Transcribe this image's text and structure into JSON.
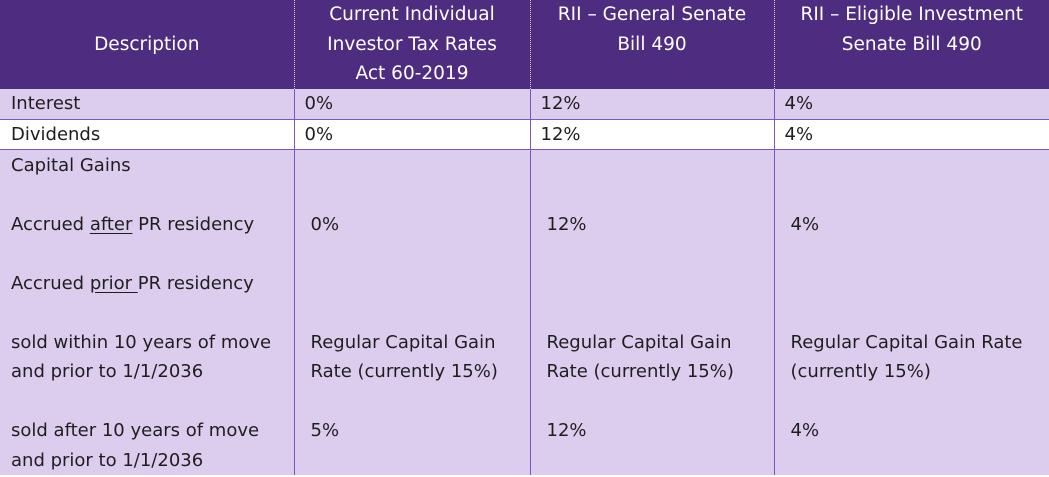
{
  "headers": {
    "description": "Description",
    "col_current": [
      "Current Individual",
      "Investor Tax Rates",
      "Act 60-2019"
    ],
    "col_general": [
      "RII – General Senate",
      "Bill 490"
    ],
    "col_eligible": [
      "RII – Eligible Investment",
      "Senate Bill 490"
    ]
  },
  "rows": {
    "interest": {
      "label": "Interest",
      "current": "0%",
      "general": "12%",
      "eligible": "4%"
    },
    "dividends": {
      "label": "Dividends",
      "current": "0%",
      "general": "12%",
      "eligible": "4%"
    }
  },
  "capital_gains": {
    "label": "Capital Gains",
    "accrued_after": {
      "prefix": "Accrued ",
      "emph": "after",
      "suffix": " PR residency",
      "current": "0%",
      "general": "12%",
      "eligible": "4%"
    },
    "accrued_prior": {
      "prefix": "Accrued ",
      "emph": "prior ",
      "suffix": "PR residency"
    },
    "within_10": {
      "label": [
        "sold within 10 years of move",
        "and prior to 1/1/2036"
      ],
      "current": [
        "Regular Capital Gain",
        "Rate (currently 15%)"
      ],
      "general": [
        "Regular Capital Gain",
        "Rate (currently 15%)"
      ],
      "eligible": [
        "Regular Capital Gain Rate",
        "(currently 15%)"
      ]
    },
    "after_10": {
      "label": [
        "sold after 10 years of move",
        "and prior to 1/1/2036"
      ],
      "current": "5%",
      "general": "12%",
      "eligible": "4%"
    }
  },
  "colors": {
    "header_bg": "#4e2c7f",
    "row_lavender": "#dccdef",
    "grid": "#7a57c0"
  }
}
